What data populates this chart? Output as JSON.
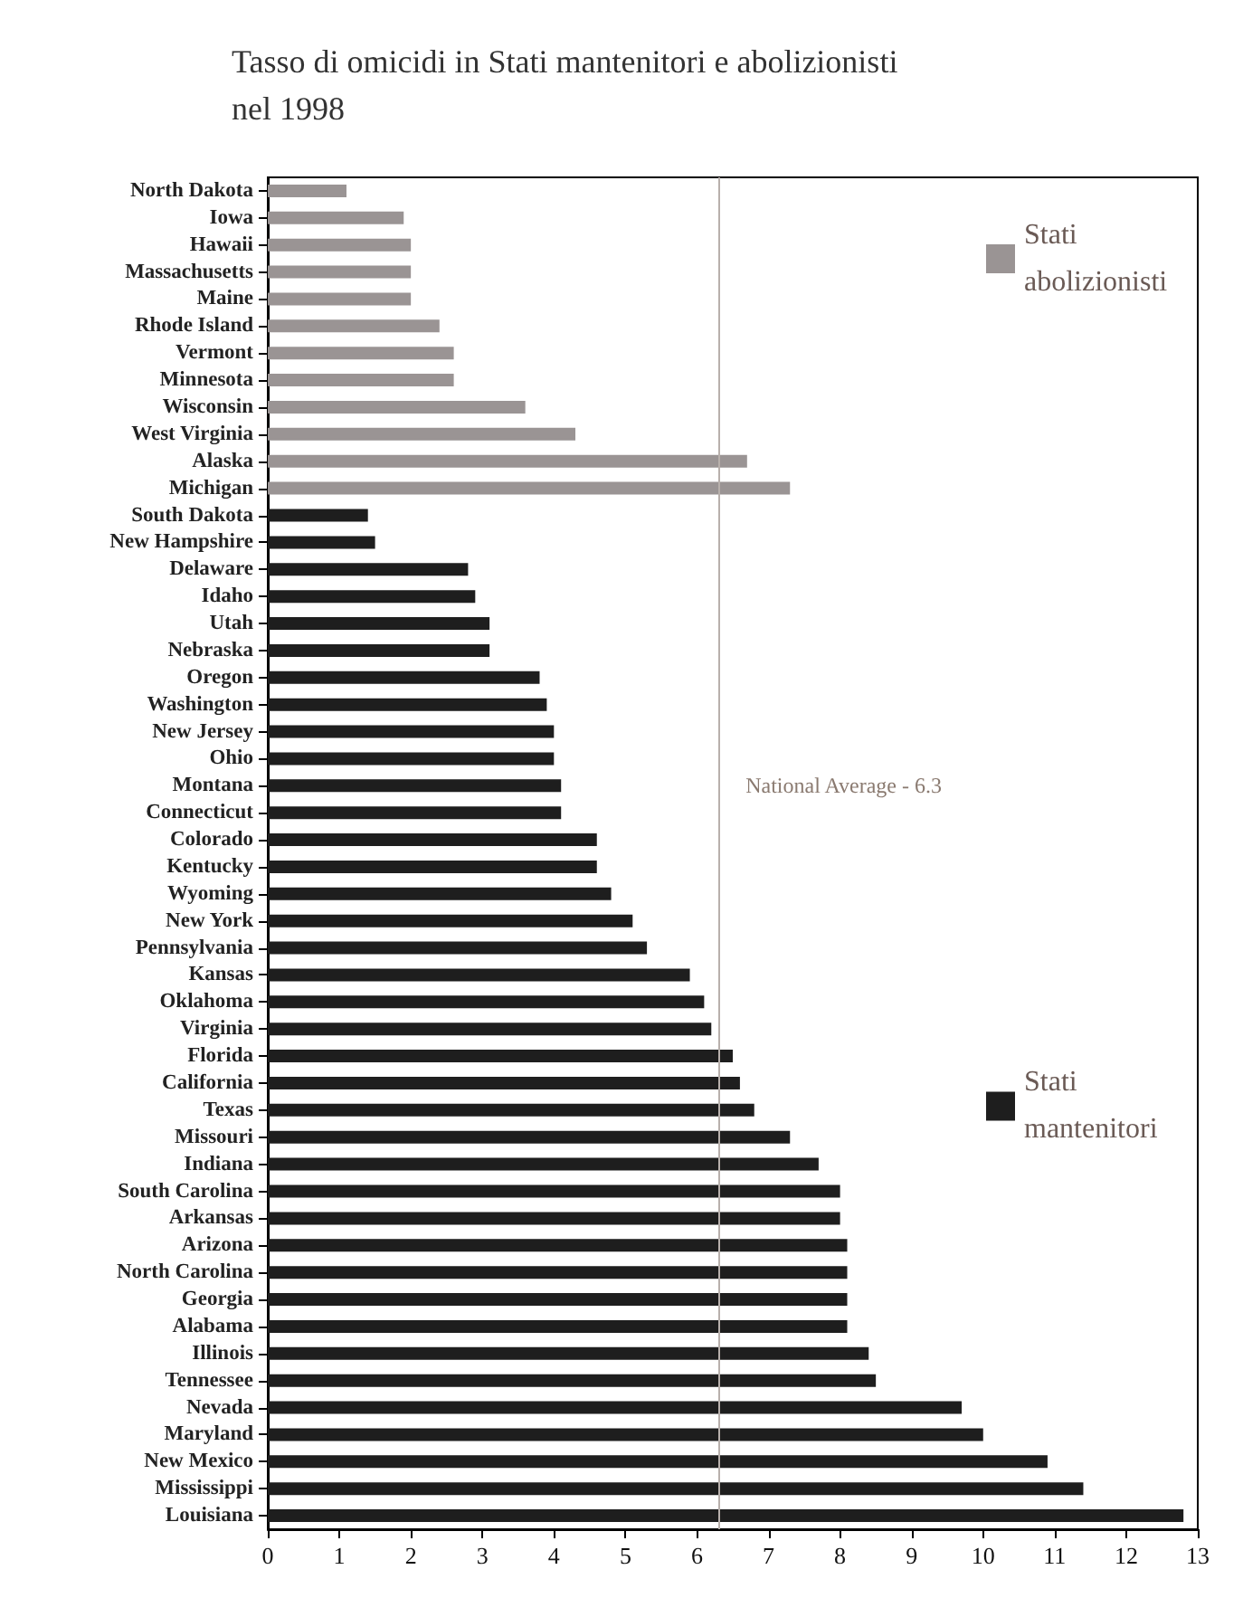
{
  "chart_data": {
    "type": "bar",
    "orientation": "horizontal",
    "title": "Tasso di omicidi in Stati mantenitori e abolizionisti nel 1998",
    "categories": [
      "North Dakota",
      "Iowa",
      "Hawaii",
      "Massachusetts",
      "Maine",
      "Rhode Island",
      "Vermont",
      "Minnesota",
      "Wisconsin",
      "West Virginia",
      "Alaska",
      "Michigan",
      "South Dakota",
      "New Hampshire",
      "Delaware",
      "Idaho",
      "Utah",
      "Nebraska",
      "Oregon",
      "Washington",
      "New Jersey",
      "Ohio",
      "Montana",
      "Connecticut",
      "Colorado",
      "Kentucky",
      "Wyoming",
      "New York",
      "Pennsylvania",
      "Kansas",
      "Oklahoma",
      "Virginia",
      "Florida",
      "California",
      "Texas",
      "Missouri",
      "Indiana",
      "South Carolina",
      "Arkansas",
      "Arizona",
      "North Carolina",
      "Georgia",
      "Alabama",
      "Illinois",
      "Tennessee",
      "Nevada",
      "Maryland",
      "New Mexico",
      "Mississippi",
      "Louisiana"
    ],
    "series": [
      {
        "name": "Stati abolizionisti",
        "color": "#9a9494",
        "values": [
          1.1,
          1.9,
          2.0,
          2.0,
          2.0,
          2.4,
          2.6,
          2.6,
          3.6,
          4.3,
          6.7,
          7.3,
          null,
          null,
          null,
          null,
          null,
          null,
          null,
          null,
          null,
          null,
          null,
          null,
          null,
          null,
          null,
          null,
          null,
          null,
          null,
          null,
          null,
          null,
          null,
          null,
          null,
          null,
          null,
          null,
          null,
          null,
          null,
          null,
          null,
          null,
          null,
          null,
          null,
          null
        ]
      },
      {
        "name": "Stati mantenitori",
        "color": "#1e1e1e",
        "values": [
          null,
          null,
          null,
          null,
          null,
          null,
          null,
          null,
          null,
          null,
          null,
          null,
          1.4,
          1.5,
          2.8,
          2.9,
          3.1,
          3.1,
          3.8,
          3.9,
          4.0,
          4.0,
          4.1,
          4.1,
          4.6,
          4.6,
          4.8,
          5.1,
          5.3,
          5.9,
          6.1,
          6.2,
          6.5,
          6.6,
          6.8,
          7.3,
          7.7,
          8.0,
          8.0,
          8.1,
          8.1,
          8.1,
          8.1,
          8.4,
          8.5,
          9.7,
          10.0,
          10.9,
          11.4,
          12.8
        ]
      }
    ],
    "xlim": [
      0,
      13
    ],
    "xticks": [
      0,
      1,
      2,
      3,
      4,
      5,
      6,
      7,
      8,
      9,
      10,
      11,
      12,
      13
    ],
    "ref_lines": [
      {
        "axis": "x",
        "value": 6.3,
        "label": "National Average - 6.3",
        "color": "#b8b0ac"
      }
    ],
    "legend": "right",
    "grid": false
  }
}
